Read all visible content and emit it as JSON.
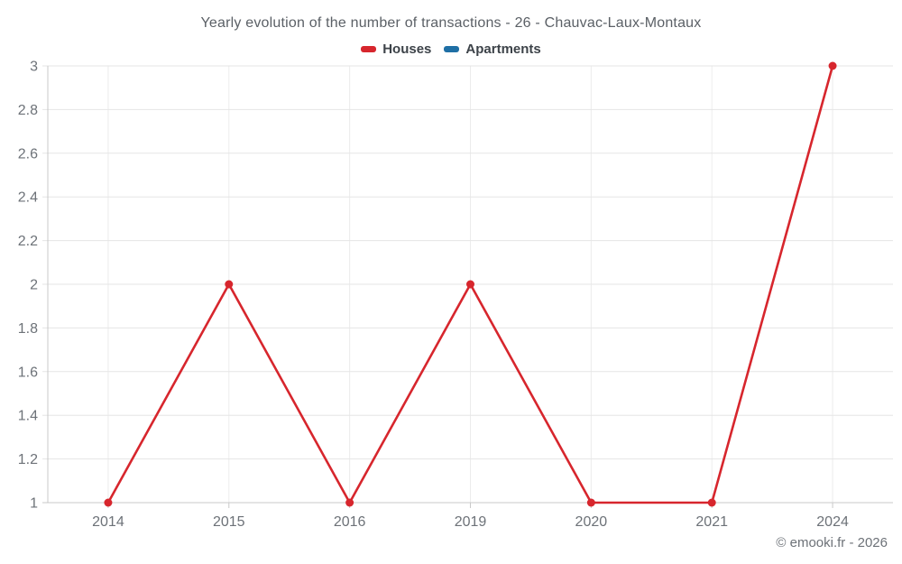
{
  "chart_data": {
    "type": "line",
    "title": "Yearly evolution of the number of transactions - 26 - Chauvac-Laux-Montaux",
    "categories": [
      "2014",
      "2015",
      "2016",
      "2019",
      "2020",
      "2021",
      "2024"
    ],
    "series": [
      {
        "name": "Houses",
        "color": "#d7262d",
        "values": [
          1,
          2,
          1,
          2,
          1,
          1,
          3
        ]
      },
      {
        "name": "Apartments",
        "color": "#1f6fa5",
        "values": []
      }
    ],
    "xlabel": "",
    "ylabel": "",
    "ylim": [
      1,
      3
    ],
    "y_tick_step": 0.2,
    "y_ticks": [
      "3",
      "2.8",
      "2.6",
      "2.4",
      "2.2",
      "2",
      "1.8",
      "1.6",
      "1.4",
      "1.2",
      "1"
    ],
    "grid": true,
    "legend_position": "top"
  },
  "credit": "© emooki.fr - 2026",
  "colors": {
    "background": "#ffffff",
    "title_text": "#5b6066",
    "legend_text": "#3d4349",
    "axis_text": "#6d7278",
    "grid_horizontal": "#e5e5e5",
    "grid_vertical": "#ececec",
    "axis_line": "#c9c9c9",
    "houses_series": "#d7262d",
    "apartments_series": "#1f6fa5"
  }
}
